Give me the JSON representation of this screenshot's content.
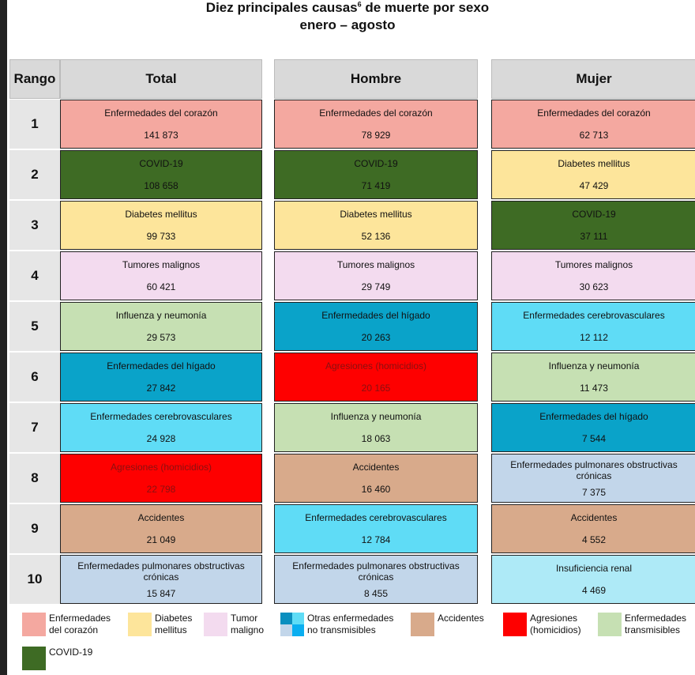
{
  "title": "Diez principales causas",
  "title_sup": "6",
  "title_rest": " de muerte por sexo",
  "subtitle": "enero – agosto",
  "headers": {
    "rank": "Rango",
    "total": "Total",
    "hombre": "Hombre",
    "mujer": "Mujer"
  },
  "colors": {
    "corazon": "#f4a8a0",
    "covid": "#3e6b24",
    "diabetes": "#fde59b",
    "tumor": "#f3dbef",
    "influenza": "#c6e0b3",
    "higado": "#0aa3c9",
    "cerebro": "#5fdcf6",
    "agresiones": "#fe0000",
    "accidentes": "#d8aa8b",
    "epoc": "#c2d6ea",
    "renal": "#aeeaf7"
  },
  "rows": [
    {
      "rank": "1",
      "total": {
        "cause": "Enfermedades del corazón",
        "value": "141 873",
        "cat": "corazon"
      },
      "hombre": {
        "cause": "Enfermedades del corazón",
        "value": "78 929",
        "cat": "corazon"
      },
      "mujer": {
        "cause": "Enfermedades del corazón",
        "value": "62 713",
        "cat": "corazon"
      }
    },
    {
      "rank": "2",
      "total": {
        "cause": "COVID-19",
        "value": "108 658",
        "cat": "covid"
      },
      "hombre": {
        "cause": "COVID-19",
        "value": "71 419",
        "cat": "covid"
      },
      "mujer": {
        "cause": "Diabetes mellitus",
        "value": "47 429",
        "cat": "diabetes"
      }
    },
    {
      "rank": "3",
      "total": {
        "cause": "Diabetes mellitus",
        "value": "99 733",
        "cat": "diabetes"
      },
      "hombre": {
        "cause": "Diabetes mellitus",
        "value": "52 136",
        "cat": "diabetes"
      },
      "mujer": {
        "cause": "COVID-19",
        "value": "37 111",
        "cat": "covid"
      }
    },
    {
      "rank": "4",
      "total": {
        "cause": "Tumores malignos",
        "value": "60 421",
        "cat": "tumor"
      },
      "hombre": {
        "cause": "Tumores malignos",
        "value": "29 749",
        "cat": "tumor"
      },
      "mujer": {
        "cause": "Tumores malignos",
        "value": "30 623",
        "cat": "tumor"
      }
    },
    {
      "rank": "5",
      "total": {
        "cause": "Influenza y neumonía",
        "value": "29 573",
        "cat": "influenza"
      },
      "hombre": {
        "cause": "Enfermedades del hígado",
        "value": "20 263",
        "cat": "higado"
      },
      "mujer": {
        "cause": "Enfermedades cerebrovasculares",
        "value": "12 112",
        "cat": "cerebro"
      }
    },
    {
      "rank": "6",
      "total": {
        "cause": "Enfermedades del hígado",
        "value": "27 842",
        "cat": "higado"
      },
      "hombre": {
        "cause": "Agresiones (homicidios)",
        "value": "20 165",
        "cat": "agresiones"
      },
      "mujer": {
        "cause": "Influenza y neumonía",
        "value": "11 473",
        "cat": "influenza"
      }
    },
    {
      "rank": "7",
      "total": {
        "cause": "Enfermedades cerebrovasculares",
        "value": "24 928",
        "cat": "cerebro"
      },
      "hombre": {
        "cause": "Influenza y neumonía",
        "value": "18 063",
        "cat": "influenza"
      },
      "mujer": {
        "cause": "Enfermedades del hígado",
        "value": "7 544",
        "cat": "higado"
      }
    },
    {
      "rank": "8",
      "total": {
        "cause": "Agresiones (homicidios)",
        "value": "22 798",
        "cat": "agresiones"
      },
      "hombre": {
        "cause": "Accidentes",
        "value": "16 460",
        "cat": "accidentes"
      },
      "mujer": {
        "cause": "Enfermedades pulmonares obstructivas crónicas",
        "value": "7 375",
        "cat": "epoc"
      }
    },
    {
      "rank": "9",
      "total": {
        "cause": "Accidentes",
        "value": "21 049",
        "cat": "accidentes"
      },
      "hombre": {
        "cause": "Enfermedades cerebrovasculares",
        "value": "12 784",
        "cat": "cerebro"
      },
      "mujer": {
        "cause": "Accidentes",
        "value": "4 552",
        "cat": "accidentes"
      }
    },
    {
      "rank": "10",
      "total": {
        "cause": "Enfermedades pulmonares obstructivas crónicas",
        "value": "15 847",
        "cat": "epoc"
      },
      "hombre": {
        "cause": "Enfermedades pulmonares obstructivas crónicas",
        "value": "8 455",
        "cat": "epoc"
      },
      "mujer": {
        "cause": "Insuficiencia renal",
        "value": "4 469",
        "cat": "renal"
      }
    }
  ],
  "legend": [
    {
      "label1": "Enfermedades",
      "label2": "del corazón",
      "cat": "corazon"
    },
    {
      "label1": "Diabetes",
      "label2": "mellitus",
      "cat": "diabetes"
    },
    {
      "label1": "Tumor",
      "label2": "maligno",
      "cat": "tumor"
    },
    {
      "label1": "Otras enfermedades",
      "label2": "no transmisibles",
      "cat": "otras"
    },
    {
      "label1": "Accidentes",
      "label2": "",
      "cat": "accidentes"
    },
    {
      "label1": "Agresiones",
      "label2": "(homicidios)",
      "cat": "agresiones"
    },
    {
      "label1": "Enfermedades",
      "label2": "transmisibles",
      "cat": "influenza"
    },
    {
      "label1": "COVID-19",
      "label2": "",
      "cat": "covid"
    }
  ]
}
